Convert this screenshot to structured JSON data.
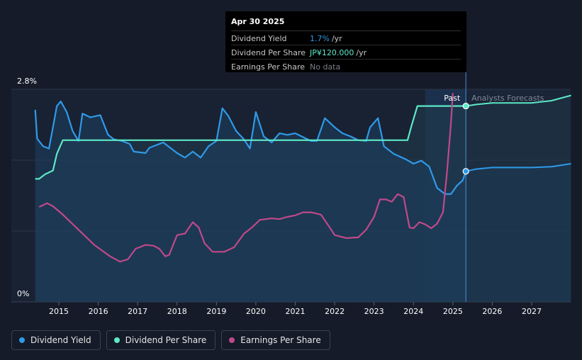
{
  "tooltip": {
    "date": "Apr 30 2025",
    "rows": [
      {
        "label": "Dividend Yield",
        "value": "1.7%",
        "unit": "/yr",
        "color": "#2f9ae8"
      },
      {
        "label": "Dividend Per Share",
        "value": "JP¥120.000",
        "unit": "/yr",
        "color": "#5de8c6"
      },
      {
        "label": "Earnings Per Share",
        "value": "No data",
        "unit": "",
        "color": "#7a7f8a"
      }
    ]
  },
  "legend": [
    {
      "label": "Dividend Yield",
      "color": "#2f9ae8"
    },
    {
      "label": "Dividend Per Share",
      "color": "#5de8c6"
    },
    {
      "label": "Earnings Per Share",
      "color": "#c0498a"
    }
  ],
  "chart_data": {
    "type": "line",
    "title": "",
    "xlabel": "",
    "ylabel": "",
    "x_ticks": [
      "2015",
      "2016",
      "2017",
      "2018",
      "2019",
      "2020",
      "2021",
      "2022",
      "2023",
      "2024",
      "2025",
      "2026",
      "2027"
    ],
    "y_tick_labels": [
      "2.8%",
      "0%"
    ],
    "ylim": [
      0,
      2.8
    ],
    "xlim": [
      2014.4,
      2028.0
    ],
    "grid": true,
    "regions": {
      "past_label": "Past",
      "forecast_label": "Analysts Forecasts",
      "past_start": 2024.3,
      "split": 2025.33
    },
    "series": [
      {
        "name": "Dividend Yield",
        "color": "#2f9ae8",
        "unit": "%",
        "points": [
          [
            2014.4,
            2.53
          ],
          [
            2014.45,
            2.15
          ],
          [
            2014.6,
            2.05
          ],
          [
            2014.75,
            2.02
          ],
          [
            2014.85,
            2.3
          ],
          [
            2014.95,
            2.58
          ],
          [
            2015.05,
            2.64
          ],
          [
            2015.2,
            2.5
          ],
          [
            2015.35,
            2.25
          ],
          [
            2015.5,
            2.12
          ],
          [
            2015.6,
            2.48
          ],
          [
            2015.8,
            2.43
          ],
          [
            2016.05,
            2.46
          ],
          [
            2016.25,
            2.2
          ],
          [
            2016.4,
            2.14
          ],
          [
            2016.6,
            2.12
          ],
          [
            2016.8,
            2.08
          ],
          [
            2016.9,
            1.98
          ],
          [
            2017.2,
            1.96
          ],
          [
            2017.3,
            2.03
          ],
          [
            2017.5,
            2.07
          ],
          [
            2017.65,
            2.1
          ],
          [
            2017.8,
            2.04
          ],
          [
            2018.0,
            1.96
          ],
          [
            2018.2,
            1.9
          ],
          [
            2018.4,
            1.98
          ],
          [
            2018.6,
            1.9
          ],
          [
            2018.8,
            2.05
          ],
          [
            2019.0,
            2.12
          ],
          [
            2019.15,
            2.55
          ],
          [
            2019.3,
            2.45
          ],
          [
            2019.5,
            2.25
          ],
          [
            2019.7,
            2.14
          ],
          [
            2019.85,
            2.02
          ],
          [
            2020.0,
            2.5
          ],
          [
            2020.2,
            2.18
          ],
          [
            2020.4,
            2.1
          ],
          [
            2020.6,
            2.22
          ],
          [
            2020.8,
            2.2
          ],
          [
            2021.0,
            2.22
          ],
          [
            2021.2,
            2.17
          ],
          [
            2021.4,
            2.12
          ],
          [
            2021.55,
            2.12
          ],
          [
            2021.75,
            2.42
          ],
          [
            2022.0,
            2.3
          ],
          [
            2022.2,
            2.22
          ],
          [
            2022.4,
            2.18
          ],
          [
            2022.6,
            2.13
          ],
          [
            2022.8,
            2.12
          ],
          [
            2022.9,
            2.3
          ],
          [
            2023.1,
            2.42
          ],
          [
            2023.25,
            2.05
          ],
          [
            2023.5,
            1.95
          ],
          [
            2023.8,
            1.88
          ],
          [
            2024.0,
            1.82
          ],
          [
            2024.2,
            1.86
          ],
          [
            2024.4,
            1.78
          ],
          [
            2024.6,
            1.5
          ],
          [
            2024.8,
            1.42
          ],
          [
            2024.95,
            1.42
          ],
          [
            2025.1,
            1.53
          ],
          [
            2025.25,
            1.6
          ],
          [
            2025.33,
            1.72
          ]
        ],
        "forecast": [
          [
            2025.33,
            1.72
          ],
          [
            2025.6,
            1.75
          ],
          [
            2026.0,
            1.77
          ],
          [
            2026.5,
            1.77
          ],
          [
            2027.0,
            1.77
          ],
          [
            2027.5,
            1.78
          ],
          [
            2028.0,
            1.82
          ]
        ]
      },
      {
        "name": "Dividend Per Share",
        "color": "#5de8c6",
        "unit": "JP¥",
        "points": [
          [
            2014.4,
            1.62
          ],
          [
            2014.5,
            1.62
          ],
          [
            2014.65,
            1.68
          ],
          [
            2014.85,
            1.73
          ],
          [
            2014.95,
            1.95
          ],
          [
            2015.1,
            2.13
          ],
          [
            2016.0,
            2.13
          ],
          [
            2017.0,
            2.13
          ],
          [
            2018.0,
            2.13
          ],
          [
            2019.0,
            2.13
          ],
          [
            2020.0,
            2.13
          ],
          [
            2021.0,
            2.13
          ],
          [
            2022.0,
            2.13
          ],
          [
            2023.0,
            2.13
          ],
          [
            2023.85,
            2.13
          ],
          [
            2023.95,
            2.32
          ],
          [
            2024.1,
            2.58
          ],
          [
            2025.0,
            2.58
          ],
          [
            2025.33,
            2.58
          ]
        ],
        "forecast": [
          [
            2025.33,
            2.58
          ],
          [
            2025.6,
            2.6
          ],
          [
            2026.0,
            2.62
          ],
          [
            2026.5,
            2.62
          ],
          [
            2027.0,
            2.62
          ],
          [
            2027.5,
            2.65
          ],
          [
            2028.0,
            2.72
          ]
        ]
      },
      {
        "name": "Earnings Per Share",
        "color": "#c0498a",
        "unit": "JP¥",
        "points": [
          [
            2014.5,
            1.25
          ],
          [
            2014.7,
            1.3
          ],
          [
            2014.85,
            1.26
          ],
          [
            2015.1,
            1.15
          ],
          [
            2015.5,
            0.95
          ],
          [
            2015.9,
            0.75
          ],
          [
            2016.3,
            0.6
          ],
          [
            2016.55,
            0.53
          ],
          [
            2016.75,
            0.56
          ],
          [
            2016.95,
            0.7
          ],
          [
            2017.2,
            0.75
          ],
          [
            2017.4,
            0.74
          ],
          [
            2017.55,
            0.7
          ],
          [
            2017.7,
            0.6
          ],
          [
            2017.8,
            0.62
          ],
          [
            2018.0,
            0.88
          ],
          [
            2018.2,
            0.9
          ],
          [
            2018.4,
            1.05
          ],
          [
            2018.55,
            0.98
          ],
          [
            2018.7,
            0.77
          ],
          [
            2018.9,
            0.66
          ],
          [
            2019.2,
            0.66
          ],
          [
            2019.45,
            0.72
          ],
          [
            2019.7,
            0.9
          ],
          [
            2019.9,
            0.98
          ],
          [
            2020.1,
            1.08
          ],
          [
            2020.4,
            1.1
          ],
          [
            2020.6,
            1.09
          ],
          [
            2020.8,
            1.12
          ],
          [
            2021.0,
            1.14
          ],
          [
            2021.2,
            1.18
          ],
          [
            2021.4,
            1.18
          ],
          [
            2021.65,
            1.15
          ],
          [
            2021.85,
            1.0
          ],
          [
            2022.0,
            0.88
          ],
          [
            2022.3,
            0.84
          ],
          [
            2022.6,
            0.85
          ],
          [
            2022.8,
            0.95
          ],
          [
            2023.0,
            1.12
          ],
          [
            2023.15,
            1.35
          ],
          [
            2023.3,
            1.35
          ],
          [
            2023.45,
            1.32
          ],
          [
            2023.6,
            1.42
          ],
          [
            2023.75,
            1.38
          ],
          [
            2023.9,
            0.98
          ],
          [
            2024.0,
            0.97
          ],
          [
            2024.15,
            1.05
          ],
          [
            2024.3,
            1.02
          ],
          [
            2024.45,
            0.97
          ],
          [
            2024.6,
            1.03
          ],
          [
            2024.75,
            1.18
          ],
          [
            2024.85,
            1.7
          ],
          [
            2024.95,
            2.35
          ],
          [
            2025.0,
            2.75
          ]
        ],
        "forecast": []
      }
    ]
  }
}
